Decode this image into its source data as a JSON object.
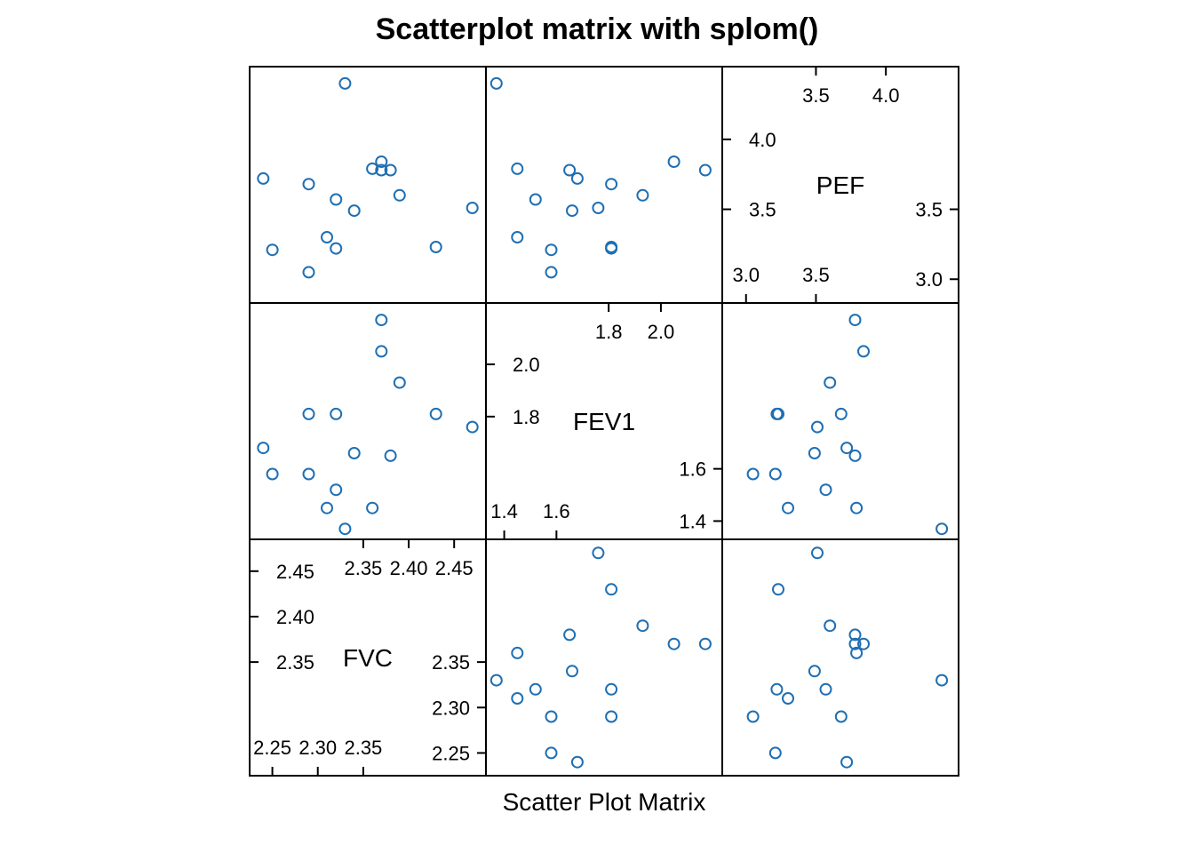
{
  "chart_data": {
    "type": "scatter",
    "title": "Scatterplot matrix with splom()",
    "xlabel": "Scatter Plot Matrix",
    "variables": [
      {
        "name": "FVC",
        "lim": [
          2.225,
          2.485
        ],
        "ticks_low": [
          "2.25",
          "2.30",
          "2.35"
        ],
        "ticks_low_values": [
          2.25,
          2.3,
          2.35
        ],
        "ticks_high": [
          "2.35",
          "2.40",
          "2.45"
        ],
        "ticks_high_values": [
          2.35,
          2.4,
          2.45
        ]
      },
      {
        "name": "FEV1",
        "lim": [
          1.33,
          2.235
        ],
        "ticks_low": [
          "1.4",
          "1.6"
        ],
        "ticks_low_values": [
          1.4,
          1.6
        ],
        "ticks_high": [
          "1.8",
          "2.0"
        ],
        "ticks_high_values": [
          1.8,
          2.0
        ]
      },
      {
        "name": "PEF",
        "lim": [
          2.83,
          4.52
        ],
        "ticks_low": [
          "3.0",
          "3.5"
        ],
        "ticks_low_values": [
          3.0,
          3.5
        ],
        "ticks_high": [
          "3.5",
          "4.0"
        ],
        "ticks_high_values": [
          3.5,
          4.0
        ]
      }
    ],
    "points": [
      {
        "FVC": 2.33,
        "FEV1": 1.37,
        "PEF": 4.4
      },
      {
        "FVC": 2.31,
        "FEV1": 1.45,
        "PEF": 3.3
      },
      {
        "FVC": 2.38,
        "FEV1": 1.65,
        "PEF": 3.78
      },
      {
        "FVC": 2.36,
        "FEV1": 1.45,
        "PEF": 3.79
      },
      {
        "FVC": 2.32,
        "FEV1": 1.52,
        "PEF": 3.57
      },
      {
        "FVC": 2.34,
        "FEV1": 1.66,
        "PEF": 3.49
      },
      {
        "FVC": 2.43,
        "FEV1": 1.81,
        "PEF": 3.23
      },
      {
        "FVC": 2.25,
        "FEV1": 1.58,
        "PEF": 3.21
      },
      {
        "FVC": 2.37,
        "FEV1": 2.17,
        "PEF": 3.78
      },
      {
        "FVC": 2.37,
        "FEV1": 2.05,
        "PEF": 3.84
      },
      {
        "FVC": 2.29,
        "FEV1": 1.81,
        "PEF": 3.68
      },
      {
        "FVC": 2.29,
        "FEV1": 1.58,
        "PEF": 3.05
      },
      {
        "FVC": 2.39,
        "FEV1": 1.93,
        "PEF": 3.6
      },
      {
        "FVC": 2.32,
        "FEV1": 1.81,
        "PEF": 3.22
      },
      {
        "FVC": 2.24,
        "FEV1": 1.68,
        "PEF": 3.72
      },
      {
        "FVC": 2.47,
        "FEV1": 1.76,
        "PEF": 3.51
      }
    ],
    "grid": false,
    "marker": "open-circle",
    "point_color": "#1f6fb3"
  }
}
